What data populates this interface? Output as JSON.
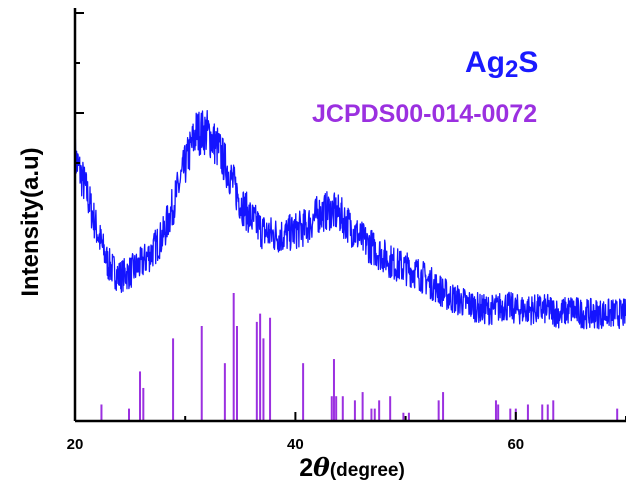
{
  "chart_data": {
    "type": "line",
    "title": "",
    "xlabel_prefix": "2",
    "xlabel_theta": "θ",
    "xlabel_suffix": "(degree)",
    "ylabel": "Intensity(a.u)",
    "xlim": [
      20,
      70
    ],
    "ylim": [
      0,
      1
    ],
    "x_ticks": [
      20,
      40,
      60
    ],
    "grid": false,
    "legend": {
      "sample_main": "Ag",
      "sample_sub": "2",
      "sample_end": "S",
      "reference": "JCPDS00-014-0072"
    },
    "series": [
      {
        "name": "Ag2S",
        "color": "#1414ff",
        "x": [
          20,
          21,
          22,
          23,
          24,
          25,
          26,
          27,
          28,
          29,
          30,
          31,
          32,
          33,
          34,
          35,
          36,
          37,
          38,
          39,
          40,
          41,
          42,
          43,
          44,
          45,
          46,
          47,
          48,
          49,
          50,
          51,
          52,
          53,
          54,
          55,
          56,
          57,
          58,
          59,
          60,
          61,
          62,
          63,
          64,
          65,
          66,
          67,
          68,
          69,
          70
        ],
        "y": [
          0.64,
          0.56,
          0.46,
          0.38,
          0.35,
          0.36,
          0.38,
          0.41,
          0.45,
          0.53,
          0.62,
          0.7,
          0.7,
          0.66,
          0.6,
          0.53,
          0.49,
          0.46,
          0.45,
          0.45,
          0.46,
          0.47,
          0.5,
          0.51,
          0.5,
          0.47,
          0.44,
          0.42,
          0.4,
          0.38,
          0.37,
          0.36,
          0.34,
          0.32,
          0.3,
          0.29,
          0.28,
          0.27,
          0.27,
          0.28,
          0.27,
          0.27,
          0.27,
          0.27,
          0.26,
          0.27,
          0.26,
          0.26,
          0.26,
          0.26,
          0.26
        ]
      },
      {
        "name": "JCPDS00-014-0072",
        "type": "stick",
        "color": "#9b30e0",
        "x": [
          22.4,
          24.9,
          25.9,
          26.2,
          28.9,
          31.5,
          33.6,
          34.4,
          34.7,
          36.5,
          36.8,
          37.1,
          37.7,
          40.7,
          43.3,
          43.5,
          43.7,
          44.3,
          45.4,
          46.1,
          46.9,
          47.2,
          47.6,
          48.6,
          49.8,
          50.3,
          53.0,
          53.4,
          58.2,
          58.4,
          59.5,
          60.0,
          61.1,
          62.4,
          62.9,
          63.4,
          69.2
        ],
        "y": [
          0.04,
          0.03,
          0.12,
          0.08,
          0.2,
          0.23,
          0.14,
          0.31,
          0.23,
          0.24,
          0.26,
          0.2,
          0.25,
          0.14,
          0.06,
          0.15,
          0.06,
          0.06,
          0.05,
          0.07,
          0.03,
          0.03,
          0.05,
          0.06,
          0.02,
          0.02,
          0.05,
          0.07,
          0.05,
          0.04,
          0.03,
          0.03,
          0.04,
          0.04,
          0.04,
          0.05,
          0.03
        ]
      }
    ]
  }
}
